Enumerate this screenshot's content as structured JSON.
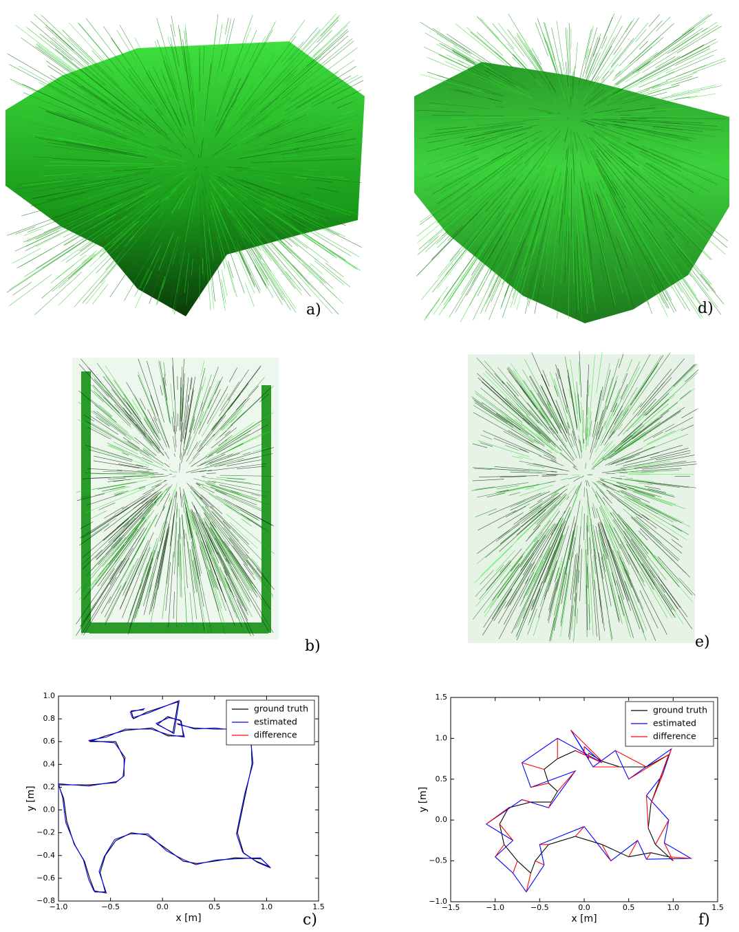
{
  "panel_labels": {
    "a": "a)",
    "d": "d)",
    "b": "b)",
    "e": "e)"
  },
  "chart_data": [
    {
      "type": "line",
      "label": "c)",
      "x_label": "x [m]",
      "y_label": "y [m]",
      "legend": "upper right",
      "xlim": [
        -1.0,
        1.5
      ],
      "ylim": [
        -0.8,
        1.0
      ],
      "xticks": [
        {
          "value": -1.0,
          "label": "−1.0"
        },
        {
          "value": -0.5,
          "label": "−0.5"
        },
        {
          "value": 0.0,
          "label": "0.0"
        },
        {
          "value": 0.5,
          "label": "0.5"
        },
        {
          "value": 1.0,
          "label": "1.0"
        },
        {
          "value": 1.5,
          "label": "1.5"
        }
      ],
      "yticks": [
        {
          "value": -0.8,
          "label": "−0.8"
        },
        {
          "value": -0.6,
          "label": "−0.6"
        },
        {
          "value": -0.4,
          "label": "−0.4"
        },
        {
          "value": -0.2,
          "label": "−0.2"
        },
        {
          "value": 0.0,
          "label": "0.0"
        },
        {
          "value": 0.2,
          "label": "0.2"
        },
        {
          "value": 0.4,
          "label": "0.4"
        },
        {
          "value": 0.6,
          "label": "0.6"
        },
        {
          "value": 0.8,
          "label": "0.8"
        },
        {
          "value": 1.0,
          "label": "1.0"
        }
      ],
      "series": [
        {
          "name": "ground truth",
          "color": "#000000",
          "x": [
            0.15,
            0.3,
            0.5,
            0.7,
            0.85,
            0.86,
            0.8,
            0.72,
            0.78,
            0.9,
            1.03,
            0.95,
            0.7,
            0.5,
            0.33,
            0.2,
            0.05,
            -0.15,
            -0.3,
            -0.45,
            -0.55,
            -0.6,
            -0.55,
            -0.65,
            -0.7,
            -0.75,
            -0.85,
            -0.92,
            -0.95,
            -1.0,
            -0.7,
            -0.45,
            -0.37,
            -0.37,
            -0.45,
            -0.7,
            -0.55,
            -0.35,
            -0.1,
            0.05,
            0.2,
            0.18,
            0.05,
            -0.05,
            0.1,
            0.15,
            -0.15,
            -0.28,
            -0.3,
            -0.18
          ],
          "values": [
            0.75,
            0.72,
            0.71,
            0.71,
            0.68,
            0.4,
            0.15,
            -0.2,
            -0.38,
            -0.45,
            -0.5,
            -0.43,
            -0.42,
            -0.45,
            -0.47,
            -0.45,
            -0.35,
            -0.22,
            -0.2,
            -0.27,
            -0.4,
            -0.55,
            -0.72,
            -0.72,
            -0.6,
            -0.45,
            -0.3,
            -0.1,
            0.1,
            0.22,
            0.22,
            0.24,
            0.3,
            0.45,
            0.6,
            0.6,
            0.65,
            0.7,
            0.72,
            0.65,
            0.65,
            0.78,
            0.82,
            0.75,
            0.68,
            0.95,
            0.86,
            0.8,
            0.87,
            0.88
          ]
        },
        {
          "name": "estimated",
          "color": "#0000ff",
          "x": [
            0.14,
            0.31,
            0.5,
            0.71,
            0.84,
            0.87,
            0.79,
            0.71,
            0.77,
            0.91,
            1.04,
            0.94,
            0.69,
            0.51,
            0.32,
            0.21,
            0.04,
            -0.14,
            -0.31,
            -0.46,
            -0.56,
            -0.61,
            -0.54,
            -0.66,
            -0.71,
            -0.76,
            -0.84,
            -0.93,
            -0.96,
            -1.0,
            -0.71,
            -0.44,
            -0.38,
            -0.36,
            -0.46,
            -0.71,
            -0.54,
            -0.36,
            -0.11,
            0.06,
            0.21,
            0.17,
            0.06,
            -0.06,
            0.11,
            0.16,
            -0.14,
            -0.29,
            -0.31,
            -0.17
          ],
          "values": [
            0.76,
            0.71,
            0.72,
            0.7,
            0.69,
            0.41,
            0.14,
            -0.21,
            -0.37,
            -0.46,
            -0.51,
            -0.42,
            -0.43,
            -0.44,
            -0.48,
            -0.44,
            -0.36,
            -0.21,
            -0.21,
            -0.26,
            -0.41,
            -0.54,
            -0.73,
            -0.71,
            -0.61,
            -0.44,
            -0.31,
            -0.11,
            0.11,
            0.23,
            0.21,
            0.25,
            0.29,
            0.46,
            0.59,
            0.61,
            0.64,
            0.71,
            0.71,
            0.66,
            0.64,
            0.79,
            0.81,
            0.76,
            0.67,
            0.96,
            0.85,
            0.81,
            0.86,
            0.89
          ]
        },
        {
          "name": "difference",
          "color": "#ff0000",
          "x": [
            0.15,
            0.14,
            null,
            0.72,
            0.71,
            null,
            1.03,
            1.04,
            null,
            0.33,
            0.32,
            null,
            -0.3,
            -0.31,
            null,
            -0.55,
            -0.54,
            null,
            -0.92,
            -0.93,
            null,
            -0.7,
            -0.71,
            null,
            -0.37,
            -0.36,
            null,
            -0.7,
            -0.71,
            null,
            0.05,
            0.06,
            null,
            0.15,
            0.16
          ],
          "values": [
            0.75,
            0.76,
            null,
            -0.2,
            -0.21,
            null,
            -0.5,
            -0.51,
            null,
            -0.47,
            -0.48,
            null,
            -0.2,
            -0.21,
            null,
            -0.72,
            -0.73,
            null,
            -0.1,
            -0.11,
            null,
            0.22,
            0.21,
            null,
            0.45,
            0.46,
            null,
            0.6,
            0.61,
            null,
            0.65,
            0.66,
            null,
            0.95,
            0.96
          ]
        }
      ]
    },
    {
      "type": "line",
      "label": "f)",
      "x_label": "x [m]",
      "y_label": "y [m]",
      "legend": "upper right",
      "xlim": [
        -1.5,
        1.5
      ],
      "ylim": [
        -1.0,
        1.5
      ],
      "xticks": [
        {
          "value": -1.5,
          "label": "−1.5"
        },
        {
          "value": -1.0,
          "label": "−1.0"
        },
        {
          "value": -0.5,
          "label": "−0.5"
        },
        {
          "value": 0.0,
          "label": "0.0"
        },
        {
          "value": 0.5,
          "label": "0.5"
        },
        {
          "value": 1.0,
          "label": "1.0"
        },
        {
          "value": 1.5,
          "label": "1.5"
        }
      ],
      "yticks": [
        {
          "value": -1.0,
          "label": "−1.0"
        },
        {
          "value": -0.5,
          "label": "−0.5"
        },
        {
          "value": 0.0,
          "label": "0.0"
        },
        {
          "value": 0.5,
          "label": "0.5"
        },
        {
          "value": 1.0,
          "label": "1.0"
        },
        {
          "value": 1.5,
          "label": "1.5"
        }
      ],
      "series": [
        {
          "name": "ground truth",
          "color": "#000000",
          "x": [
            0.0,
            -0.1,
            -0.3,
            -0.45,
            -0.4,
            -0.3,
            -0.37,
            -0.6,
            -0.85,
            -0.95,
            -0.9,
            -0.75,
            -0.6,
            -0.55,
            -0.4,
            -0.1,
            0.2,
            0.5,
            0.75,
            0.95,
            1.0,
            0.8,
            0.72,
            0.75,
            0.85,
            0.95,
            0.7,
            0.4,
            0.2,
            0.05
          ],
          "values": [
            0.8,
            0.85,
            0.75,
            0.62,
            0.45,
            0.35,
            0.22,
            0.22,
            0.15,
            -0.05,
            -0.3,
            -0.5,
            -0.65,
            -0.5,
            -0.3,
            -0.2,
            -0.3,
            -0.45,
            -0.4,
            -0.45,
            -0.5,
            -0.3,
            -0.1,
            0.2,
            0.5,
            0.8,
            0.65,
            0.65,
            0.72,
            0.82
          ]
        },
        {
          "name": "estimated",
          "color": "#0000ff",
          "x": [
            0.0,
            0.2,
            -0.3,
            -0.7,
            -0.6,
            -0.1,
            -0.4,
            -0.7,
            -1.1,
            -0.8,
            -1.0,
            -0.8,
            -0.65,
            -0.45,
            -0.5,
            0.0,
            0.3,
            0.6,
            0.7,
            1.2,
            0.9,
            0.95,
            0.7,
            0.88,
            0.98,
            0.5,
            0.35,
            0.1,
            -0.15,
            0.05
          ],
          "values": [
            0.9,
            0.7,
            1.0,
            0.7,
            0.4,
            0.6,
            0.15,
            0.25,
            -0.05,
            -0.25,
            -0.45,
            -0.65,
            -0.88,
            -0.55,
            -0.3,
            -0.08,
            -0.5,
            -0.25,
            -0.48,
            -0.47,
            -0.28,
            0.0,
            0.3,
            0.55,
            0.87,
            0.5,
            0.85,
            0.65,
            1.1,
            0.75
          ]
        },
        {
          "name": "difference",
          "color": "#ff0000",
          "x": [
            0.0,
            0.0,
            null,
            -0.1,
            0.2,
            null,
            -0.3,
            -0.3,
            null,
            -0.45,
            -0.7,
            null,
            -0.4,
            -0.6,
            null,
            -0.3,
            -0.1,
            null,
            -0.37,
            -0.4,
            null,
            -0.6,
            -0.7,
            null,
            -0.85,
            -1.1,
            null,
            -0.95,
            -0.8,
            null,
            -0.9,
            -1.0,
            null,
            -0.75,
            -0.8,
            null,
            -0.6,
            -0.65,
            null,
            -0.55,
            -0.45,
            null,
            -0.4,
            -0.5,
            null,
            -0.1,
            0.0,
            null,
            0.2,
            0.3,
            null,
            0.5,
            0.6,
            null,
            0.75,
            0.7,
            null,
            0.95,
            1.2,
            null,
            1.0,
            0.9,
            null,
            0.8,
            0.95,
            null,
            0.72,
            0.7,
            null,
            0.75,
            0.88,
            null,
            0.85,
            0.98,
            null,
            0.95,
            0.5,
            null,
            0.7,
            0.35,
            null,
            0.4,
            0.1,
            null,
            0.2,
            -0.15,
            null,
            0.05,
            0.05
          ],
          "values": [
            0.8,
            0.9,
            null,
            0.85,
            0.7,
            null,
            0.75,
            1.0,
            null,
            0.62,
            0.7,
            null,
            0.45,
            0.4,
            null,
            0.35,
            0.6,
            null,
            0.22,
            0.15,
            null,
            0.22,
            0.25,
            null,
            0.15,
            -0.05,
            null,
            -0.05,
            -0.25,
            null,
            -0.3,
            -0.45,
            null,
            -0.5,
            -0.65,
            null,
            -0.65,
            -0.88,
            null,
            -0.5,
            -0.55,
            null,
            -0.3,
            -0.3,
            null,
            -0.2,
            -0.08,
            null,
            -0.3,
            -0.5,
            null,
            -0.45,
            -0.25,
            null,
            -0.4,
            -0.48,
            null,
            -0.45,
            -0.47,
            null,
            -0.5,
            -0.28,
            null,
            -0.3,
            0.0,
            null,
            -0.1,
            0.3,
            null,
            0.2,
            0.55,
            null,
            0.5,
            0.87,
            null,
            0.8,
            0.5,
            null,
            0.65,
            0.85,
            null,
            0.65,
            0.65,
            null,
            0.72,
            1.1,
            null,
            0.82,
            0.75
          ]
        }
      ]
    }
  ]
}
